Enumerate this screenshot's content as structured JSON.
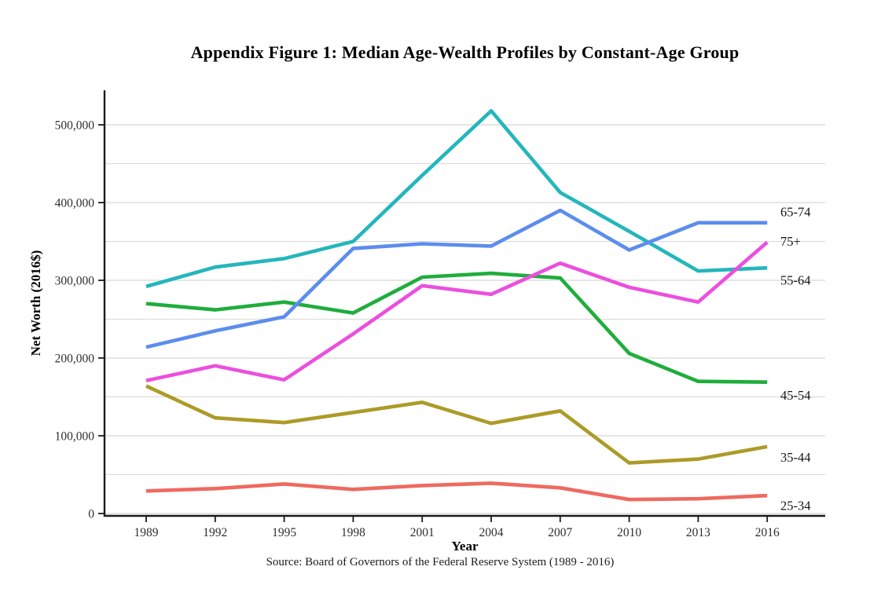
{
  "page": {
    "title": "Appendix Figure 1: Median Age-Wealth Profiles by Constant-Age Group",
    "source": "Source: Board of Governors of the Federal Reserve System (1989 - 2016)"
  },
  "chart_data": {
    "type": "line",
    "title": "Appendix Figure 1: Median Age-Wealth Profiles by Constant-Age Group",
    "xlabel": "Year",
    "ylabel": "Net Worth (2016$)",
    "x": [
      1989,
      1992,
      1995,
      1998,
      2001,
      2004,
      2007,
      2010,
      2013,
      2016
    ],
    "x_tick_labels": [
      "1989",
      "1992",
      "1995",
      "1998",
      "2001",
      "2004",
      "2007",
      "2010",
      "2013",
      "2016"
    ],
    "ylim": [
      0,
      530000
    ],
    "y_ticks": [
      {
        "value": 0,
        "label": "0"
      },
      {
        "value": 100000,
        "label": "100,000"
      },
      {
        "value": 200000,
        "label": "200,000"
      },
      {
        "value": 300000,
        "label": "300,000"
      },
      {
        "value": 400000,
        "label": "400,000"
      },
      {
        "value": 500000,
        "label": "500,000"
      }
    ],
    "y_minor_gridline_step": 50000,
    "grid": "horizontal gridlines, major and minor, light gray",
    "legend_position": "direct labels at right edge of lines",
    "series": [
      {
        "name": "25-34",
        "color": "#EE6A60",
        "label_value": 10000,
        "values": [
          29000,
          32000,
          38000,
          31000,
          36000,
          39000,
          33000,
          18000,
          19000,
          23000
        ]
      },
      {
        "name": "35-44",
        "color": "#AC9B27",
        "label_value": 72000,
        "values": [
          164000,
          123000,
          117000,
          130000,
          143000,
          116000,
          132000,
          65000,
          70000,
          86000
        ]
      },
      {
        "name": "45-54",
        "color": "#1FAD3C",
        "label_value": 152000,
        "values": [
          270000,
          262000,
          272000,
          258000,
          304000,
          309000,
          303000,
          206000,
          170000,
          169000
        ]
      },
      {
        "name": "55-64",
        "color": "#24B6BC",
        "label_value": 300000,
        "values": [
          292000,
          317000,
          328000,
          350000,
          435000,
          518000,
          413000,
          363000,
          312000,
          316000
        ]
      },
      {
        "name": "65-74",
        "color": "#5C8DEE",
        "label_value": 388000,
        "values": [
          214000,
          235000,
          253000,
          341000,
          347000,
          344000,
          390000,
          339000,
          374000,
          374000
        ]
      },
      {
        "name": "75+",
        "color": "#EB4FDE",
        "label_value": 350000,
        "values": [
          171000,
          190000,
          172000,
          231000,
          293000,
          282000,
          322000,
          291000,
          272000,
          349000
        ]
      }
    ]
  }
}
